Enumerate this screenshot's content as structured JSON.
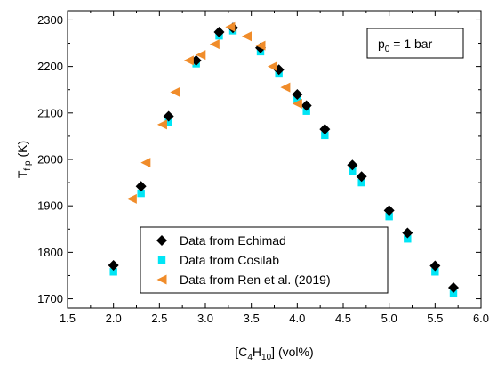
{
  "chart_data": {
    "type": "scatter",
    "title": "",
    "xlabel": {
      "prefix": "[C",
      "sub1": "4",
      "mid": "H",
      "sub2": "10",
      "suffix": "] (vol%)"
    },
    "ylabel": {
      "main": "T",
      "sub": "f,p",
      "suffix": " (K)"
    },
    "xlim": [
      1.5,
      6.0
    ],
    "ylim": [
      1680,
      2320
    ],
    "xticks": [
      1.5,
      2.0,
      2.5,
      3.0,
      3.5,
      4.0,
      4.5,
      5.0,
      5.5,
      6.0
    ],
    "yticks": [
      1700,
      1800,
      1900,
      2000,
      2100,
      2200,
      2300
    ],
    "grid": false,
    "legend_position": "bottom-center",
    "annotation": {
      "main": "p",
      "sub": "0",
      "rest": " = 1 bar"
    },
    "series": [
      {
        "name": "Data from Echimad",
        "marker": "diamond",
        "color": "#000000",
        "x": [
          2.0,
          2.3,
          2.6,
          2.9,
          3.15,
          3.3,
          3.6,
          3.8,
          4.0,
          4.1,
          4.3,
          4.6,
          4.7,
          5.0,
          5.2,
          5.5,
          5.7
        ],
        "y": [
          1772,
          1942,
          2093,
          2213,
          2274,
          2283,
          2240,
          2193,
          2140,
          2116,
          2065,
          1988,
          1963,
          1890,
          1842,
          1771,
          1724
        ]
      },
      {
        "name": "Data from Cosilab",
        "marker": "square",
        "color": "#00e5f5",
        "x": [
          2.0,
          2.3,
          2.6,
          2.9,
          3.15,
          3.3,
          3.6,
          3.8,
          4.0,
          4.1,
          4.3,
          4.6,
          4.7,
          5.0,
          5.2,
          5.5,
          5.7
        ],
        "y": [
          1758,
          1927,
          2080,
          2206,
          2266,
          2277,
          2232,
          2184,
          2128,
          2104,
          2052,
          1975,
          1950,
          1877,
          1829,
          1758,
          1711
        ]
      },
      {
        "name": "Data from Ren et al. (2019)",
        "marker": "triangle-left",
        "color": "#f08c2a",
        "x": [
          2.2,
          2.35,
          2.53,
          2.67,
          2.82,
          2.95,
          3.1,
          3.27,
          3.45,
          3.6,
          3.73,
          3.87,
          4.0
        ],
        "y": [
          1915,
          1993,
          2075,
          2145,
          2213,
          2225,
          2248,
          2285,
          2265,
          2245,
          2200,
          2155,
          2120
        ]
      }
    ]
  }
}
